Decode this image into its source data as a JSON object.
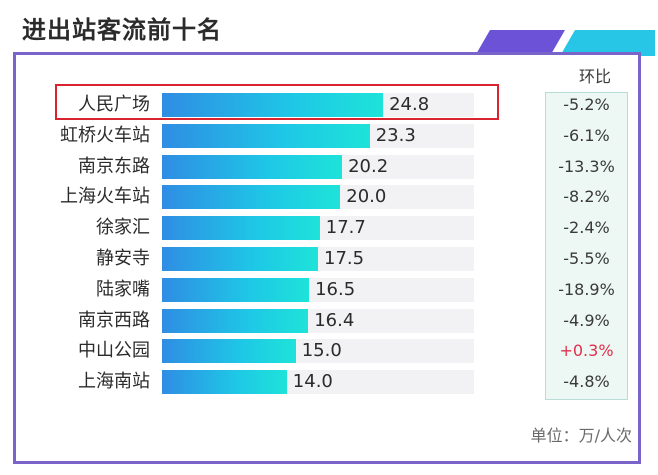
{
  "title": "进出站客流前十名",
  "change_header": "环比",
  "unit": "单位：万/人次",
  "highlight_category": "人民广场",
  "colors": {
    "frame": "#7a63c9",
    "highlight_border": "#d9232e",
    "bar_start": "#2f8de4",
    "bar_end": "#1ee3d9",
    "positive_change": "#e0304a",
    "negative_change": "#3a3a3a",
    "change_column_bg": "#edf7f4"
  },
  "chart_data": {
    "type": "bar",
    "orientation": "horizontal",
    "title": "进出站客流前十名",
    "categories": [
      "人民广场",
      "虹桥火车站",
      "南京东路",
      "上海火车站",
      "徐家汇",
      "静安寺",
      "陆家嘴",
      "南京西路",
      "中山公园",
      "上海南站"
    ],
    "values": [
      24.8,
      23.3,
      20.2,
      20.0,
      17.7,
      17.5,
      16.5,
      16.4,
      15.0,
      14.0
    ],
    "value_labels": [
      "24.8",
      "23.3",
      "20.2",
      "20.0",
      "17.7",
      "17.5",
      "16.5",
      "16.4",
      "15.0",
      "14.0"
    ],
    "changes": [
      "-5.2%",
      "-6.1%",
      "-13.3%",
      "-8.2%",
      "-2.4%",
      "-5.5%",
      "-18.9%",
      "-4.9%",
      "+0.3%",
      "-4.8%"
    ],
    "xlim": [
      0,
      35
    ],
    "grid": false,
    "legend": "none"
  }
}
